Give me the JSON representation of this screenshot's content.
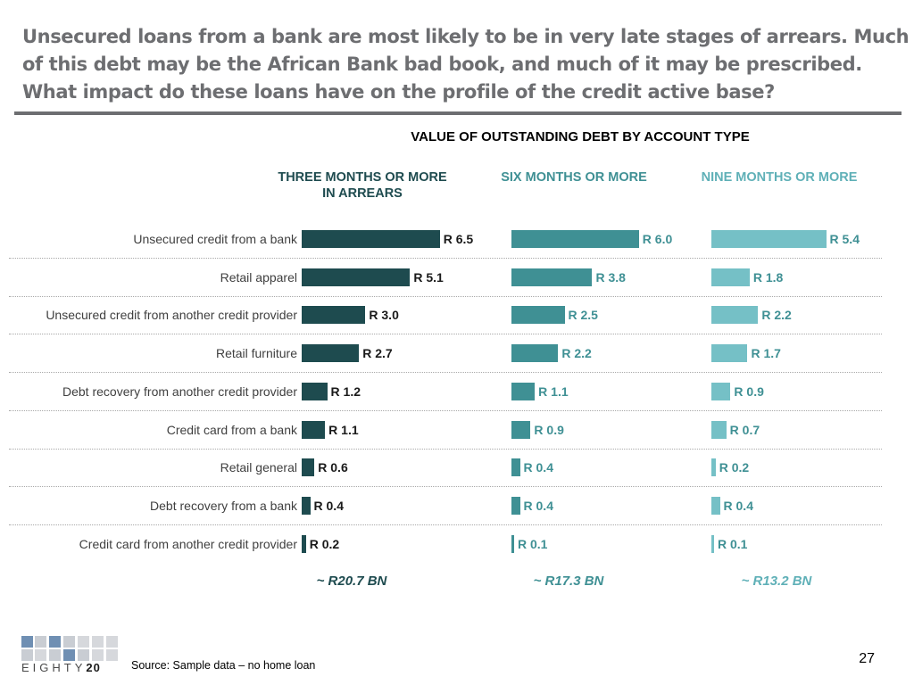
{
  "headline": {
    "line1": "Unsecured loans from a bank are most likely to be in very late stages of arrears. Much",
    "line2": "of this debt may be the African Bank bad book, and much of it may be prescribed.",
    "line3": "What impact do these loans have on the profile of the credit active base?"
  },
  "colors": {
    "three_months": "#1e4b4f",
    "six_months": "#3f9094",
    "nine_months": "#75c0c6",
    "headline": "#6d6e71"
  },
  "chart_data": {
    "type": "bar",
    "orientation": "horizontal",
    "title": "VALUE OF OUTSTANDING DEBT BY ACCOUNT TYPE",
    "categories": [
      "Unsecured credit from a bank",
      "Retail apparel",
      "Unsecured credit from another credit provider",
      "Retail furniture",
      "Debt recovery from another credit provider",
      "Credit card from a bank",
      "Retail general",
      "Debt recovery from a bank",
      "Credit card from another credit provider"
    ],
    "value_prefix": "R ",
    "series": [
      {
        "name": "THREE MONTHS OR MORE IN ARREARS",
        "values": [
          6.5,
          5.1,
          3.0,
          2.7,
          1.2,
          1.1,
          0.6,
          0.4,
          0.2
        ],
        "total": "~ R20.7 BN"
      },
      {
        "name": "SIX MONTHS OR MORE",
        "values": [
          6.0,
          3.8,
          2.5,
          2.2,
          1.1,
          0.9,
          0.4,
          0.4,
          0.1
        ],
        "total": "~ R17.3 BN"
      },
      {
        "name": "NINE MONTHS OR MORE",
        "values": [
          5.4,
          1.8,
          2.2,
          1.7,
          0.9,
          0.7,
          0.2,
          0.4,
          0.1
        ],
        "total": "~ R13.2 BN"
      }
    ],
    "grid": false,
    "legend": "column-headers"
  },
  "footer": {
    "logo_text": "EIGHTY",
    "logo_number": "20",
    "source": "Source: Sample data – no home loan",
    "page_number": "27"
  }
}
